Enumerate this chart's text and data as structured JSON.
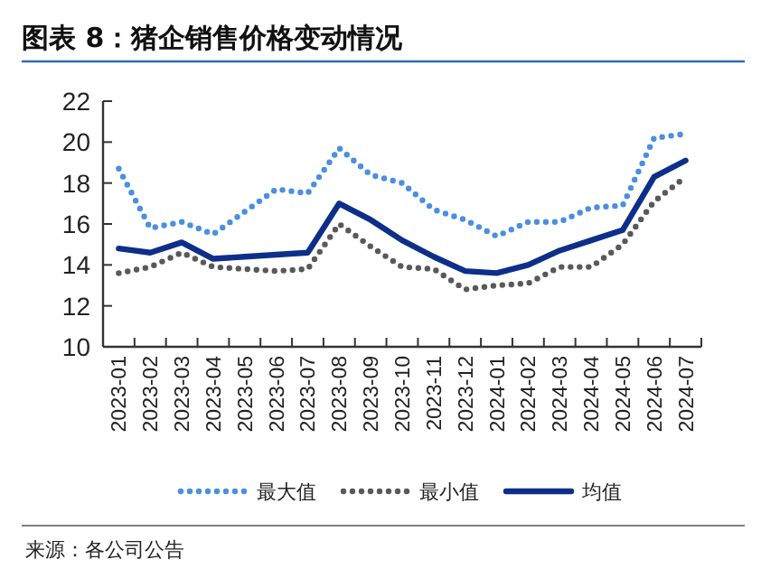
{
  "chart_data": {
    "type": "line",
    "title": "图表 8：猪企销售价格变动情况",
    "categories": [
      "2023-01",
      "2023-02",
      "2023-03",
      "2023-04",
      "2023-05",
      "2023-06",
      "2023-07",
      "2023-08",
      "2023-09",
      "2023-10",
      "2023-11",
      "2023-12",
      "2024-01",
      "2024-02",
      "2024-03",
      "2024-04",
      "2024-05",
      "2024-06",
      "2024-07"
    ],
    "series": [
      {
        "name": "最大值",
        "color": "#4a8fe0",
        "line_style": "dotted",
        "values": [
          18.7,
          15.8,
          16.1,
          15.5,
          16.6,
          17.7,
          17.5,
          19.7,
          18.4,
          18.0,
          16.7,
          16.2,
          15.4,
          16.1,
          16.1,
          16.8,
          16.9,
          20.2,
          20.4
        ]
      },
      {
        "name": "最小值",
        "color": "#595959",
        "line_style": "dotted",
        "values": [
          13.6,
          13.9,
          14.6,
          13.9,
          13.8,
          13.7,
          13.8,
          16.0,
          14.9,
          13.9,
          13.8,
          12.8,
          13.0,
          13.1,
          13.9,
          13.9,
          15.0,
          17.1,
          18.3
        ]
      },
      {
        "name": "均值",
        "color": "#0d2f8a",
        "line_style": "solid",
        "values": [
          14.8,
          14.6,
          15.1,
          14.3,
          14.4,
          14.5,
          14.6,
          17.0,
          16.2,
          15.2,
          14.4,
          13.7,
          13.6,
          14.0,
          14.7,
          15.2,
          15.7,
          18.3,
          19.1
        ]
      }
    ],
    "ylim": [
      10,
      22
    ],
    "yticks": [
      10,
      12,
      14,
      16,
      18,
      20,
      22
    ],
    "grid": false,
    "legend": "bottom",
    "marker": "none",
    "annotations": [
      "来源：各公司公告"
    ]
  }
}
